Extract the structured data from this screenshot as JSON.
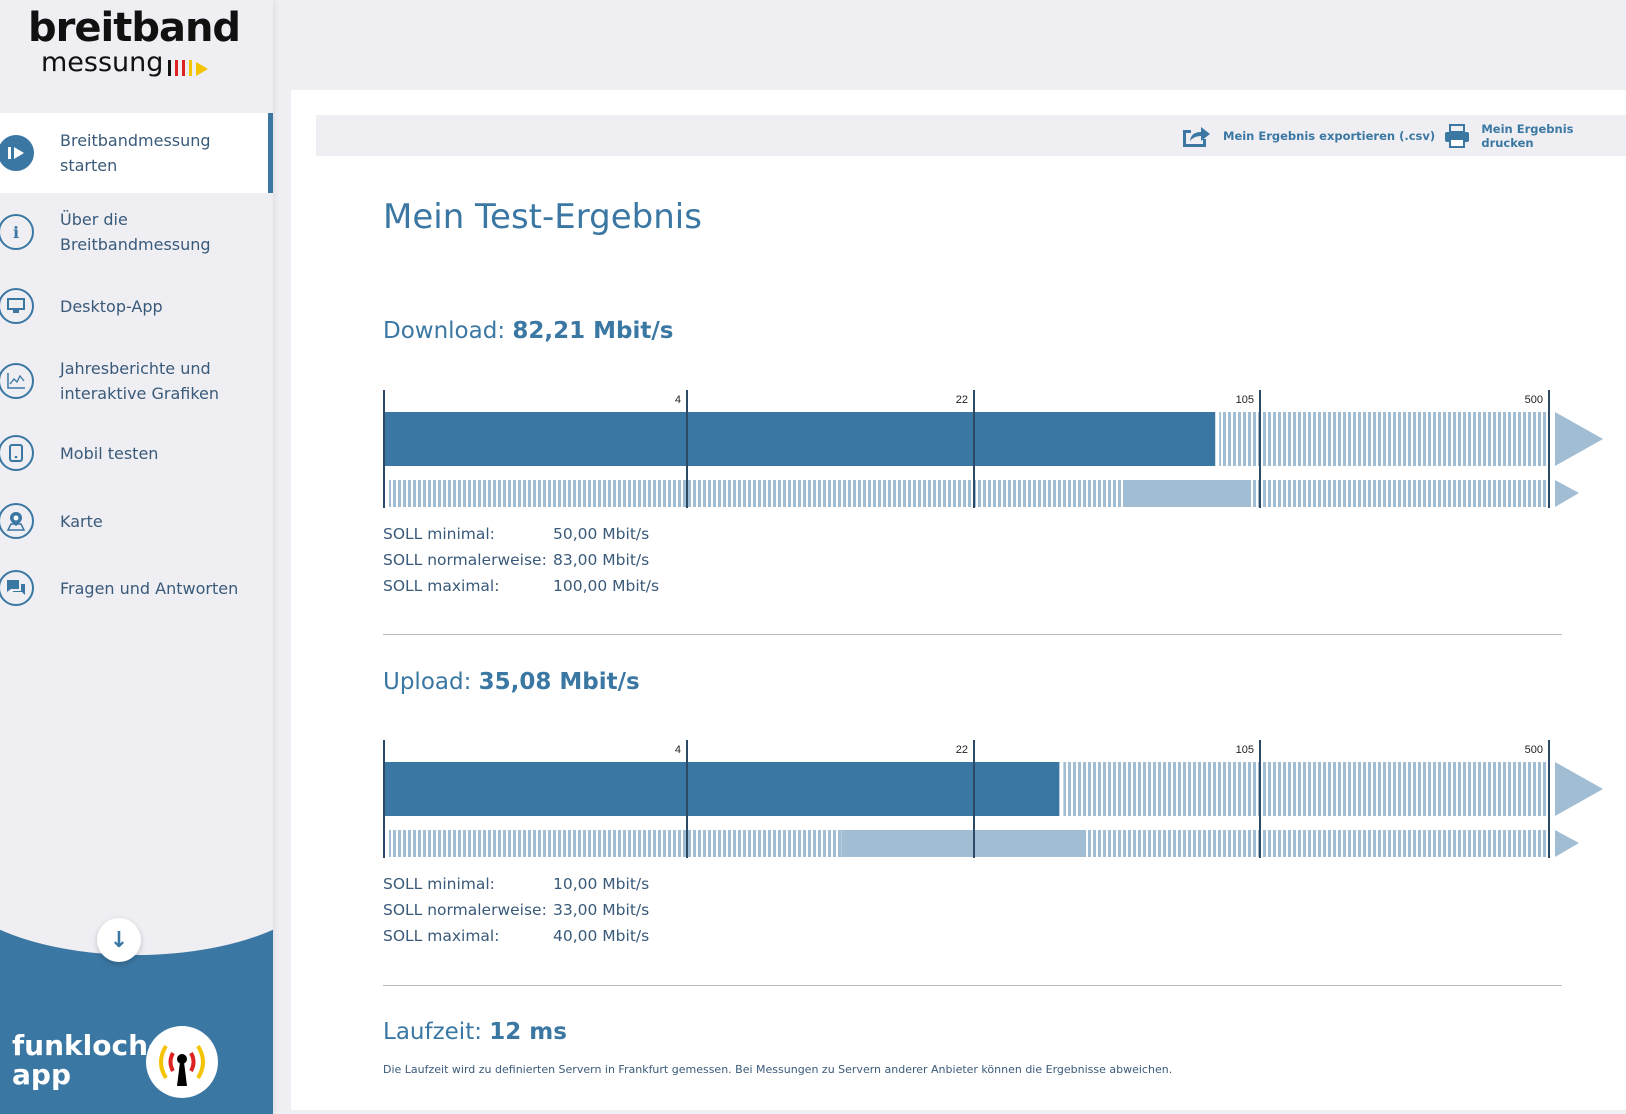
{
  "logo": {
    "line1": "breitband",
    "line2": "messung"
  },
  "sidebar": {
    "items": [
      {
        "label": "Breitbandmessung starten",
        "icon": "play-icon"
      },
      {
        "label": "Über die Breitbandmessung",
        "icon": "info-icon"
      },
      {
        "label": "Desktop-App",
        "icon": "monitor-icon"
      },
      {
        "label": "Jahresberichte und interaktive Grafiken",
        "icon": "chart-icon"
      },
      {
        "label": "Mobil testen",
        "icon": "phone-icon"
      },
      {
        "label": "Karte",
        "icon": "map-pin-icon"
      },
      {
        "label": "Fragen und Antworten",
        "icon": "chat-icon"
      }
    ],
    "funkloch": {
      "line1": "funkloch-",
      "line2": "app"
    }
  },
  "toolbar": {
    "export": "Mein Ergebnis exportieren (.csv)",
    "print": "Mein Ergebnis drucken"
  },
  "main": {
    "title": "Mein Test-Ergebnis",
    "download": {
      "label": "Download:",
      "value": "82,21 Mbit/s"
    },
    "upload": {
      "label": "Upload:",
      "value": "35,08 Mbit/s"
    },
    "soll_labels": [
      "SOLL minimal:",
      "SOLL normalerweise:",
      "SOLL maximal:"
    ],
    "download_soll": [
      "50,00 Mbit/s",
      "83,00 Mbit/s",
      "100,00 Mbit/s"
    ],
    "upload_soll": [
      "10,00 Mbit/s",
      "33,00 Mbit/s",
      "40,00 Mbit/s"
    ],
    "latency": {
      "label": "Laufzeit:",
      "value": "12 ms"
    },
    "note": "Die Laufzeit wird zu definierten Servern in Frankfurt gemessen. Bei Messungen zu Servern anderer Anbieter können die Ergebnisse abweichen."
  },
  "colors": {
    "primary": "#3b77a3",
    "light": "#a0bdd3",
    "tick": "#2c4a66"
  },
  "chart_data": [
    {
      "type": "bar",
      "title": "Download",
      "unit": "Mbit/s",
      "ticks": [
        4,
        22,
        105,
        500
      ],
      "tick_labels": [
        "4",
        "22",
        "105",
        "500"
      ],
      "value": 82.21,
      "soll_min": 50,
      "soll_normal": 83,
      "soll_max": 100
    },
    {
      "type": "bar",
      "title": "Upload",
      "unit": "Mbit/s",
      "ticks": [
        4,
        22,
        105,
        500
      ],
      "tick_labels": [
        "4",
        "22",
        "105",
        "500"
      ],
      "value": 35.08,
      "soll_min": 10,
      "soll_normal": 33,
      "soll_max": 40
    }
  ]
}
